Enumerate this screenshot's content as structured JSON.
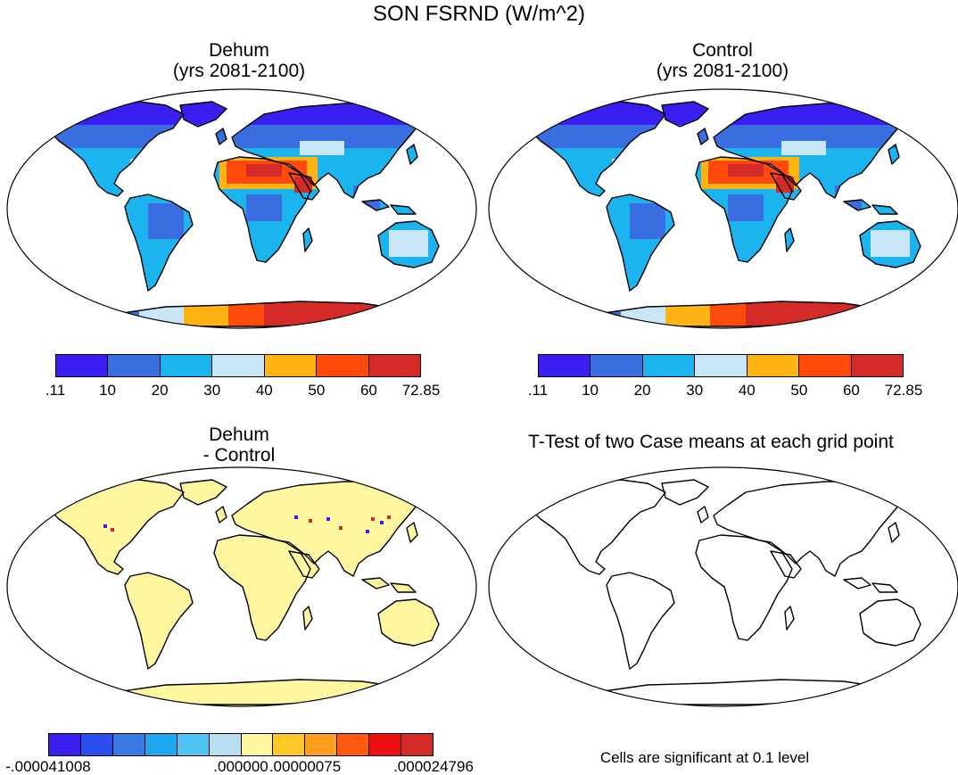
{
  "figure": {
    "title": "SON FSRND (W/m^2)"
  },
  "panels": [
    {
      "id": "dehum",
      "title_line1": "Dehum",
      "title_line2": "(yrs 2081-2100)"
    },
    {
      "id": "control",
      "title_line1": "Control",
      "title_line2": "(yrs 2081-2100)"
    },
    {
      "id": "diff",
      "title_line1": "Dehum",
      "title_line2": "- Control"
    },
    {
      "id": "ttest",
      "title_line1": "T-Test of two Case means at each grid point"
    }
  ],
  "colorbar_main": {
    "labels": [
      ".11",
      "10",
      "20",
      "30",
      "40",
      "50",
      "60",
      "72.85"
    ],
    "colors": [
      "#3a1ff0",
      "#3a6ee0",
      "#1cb4ee",
      "#c8e6f6",
      "#ffb414",
      "#ff4a0c",
      "#d42a28"
    ]
  },
  "colorbar_diff": {
    "labels": [
      "-.000041008",
      ".000000",
      ".00000075",
      ".000024796"
    ],
    "colors": [
      "#3a1ff0",
      "#2a4ef0",
      "#3a7ae6",
      "#1ea6ee",
      "#50c4f2",
      "#b8def2",
      "#fff6a0",
      "#ffc828",
      "#ff9e1e",
      "#ff5a10",
      "#ee1010",
      "#d42a28"
    ]
  },
  "note": "Cells are significant at 0.1 level",
  "palette": {
    "land_diff": "#fff6a0",
    "coast": "#000000",
    "ocean": "#ffffff"
  }
}
